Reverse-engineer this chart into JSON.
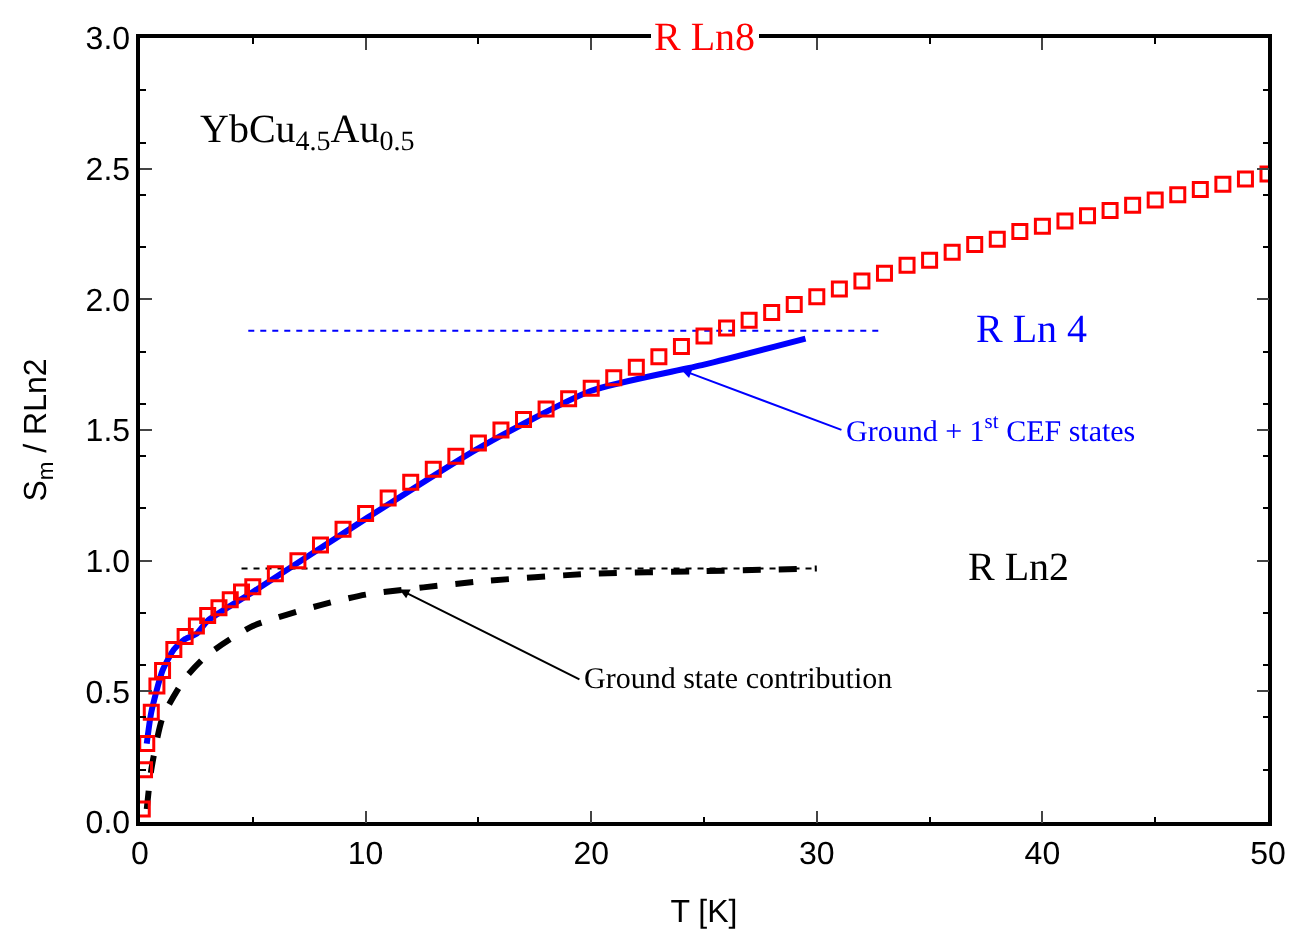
{
  "chart_data": {
    "type": "line",
    "xlabel": "T [K]",
    "ylabel": "S$_{m}$ / RLn2",
    "xlim": [
      0,
      50
    ],
    "xticks": [
      0,
      10,
      20,
      30,
      40,
      50
    ],
    "ylim": [
      0,
      3.0
    ],
    "yticks": [
      {
        "value": 0,
        "label": "0.0"
      },
      0.5,
      {
        "value": 1,
        "label": "1.0"
      },
      1.5,
      {
        "value": 2,
        "label": "2.0"
      },
      2.5,
      {
        "value": 3,
        "label": "3.0"
      }
    ],
    "series": [
      {
        "type": "scatter",
        "marker": "square",
        "color": "#ff0000",
        "x": [
          0.1,
          0.2,
          0.3,
          0.5,
          0.75,
          1,
          1.5,
          2,
          2.5,
          3,
          3.5,
          4,
          4.5,
          5,
          6,
          7,
          8,
          9,
          10,
          11,
          12,
          13,
          14,
          15,
          16,
          17,
          18,
          19,
          20,
          21,
          22,
          23,
          24,
          25,
          26,
          27,
          28,
          29,
          30,
          31,
          32,
          33,
          34,
          35,
          36,
          37,
          38,
          39,
          40,
          41,
          42,
          43,
          44,
          45,
          46,
          47,
          48,
          49,
          50
        ],
        "values": [
          0.05,
          0.2,
          0.3,
          0.42,
          0.52,
          0.58,
          0.66,
          0.71,
          0.75,
          0.79,
          0.82,
          0.85,
          0.88,
          0.9,
          0.95,
          1.0,
          1.06,
          1.12,
          1.18,
          1.24,
          1.3,
          1.35,
          1.4,
          1.45,
          1.5,
          1.54,
          1.58,
          1.62,
          1.66,
          1.7,
          1.74,
          1.78,
          1.82,
          1.86,
          1.89,
          1.92,
          1.95,
          1.98,
          2.01,
          2.04,
          2.07,
          2.1,
          2.13,
          2.15,
          2.18,
          2.21,
          2.23,
          2.26,
          2.28,
          2.3,
          2.32,
          2.34,
          2.36,
          2.38,
          2.4,
          2.42,
          2.44,
          2.46,
          2.48
        ]
      },
      {
        "line_style": "solid",
        "color": "#0000ff",
        "x": [
          0.3,
          0.5,
          1,
          1.5,
          2,
          2.5,
          3,
          5,
          10,
          15,
          20,
          25,
          29.5
        ],
        "values": [
          0.3,
          0.42,
          0.58,
          0.66,
          0.7,
          0.72,
          0.77,
          0.88,
          1.16,
          1.43,
          1.65,
          1.75,
          1.85
        ]
      },
      {
        "line_style": "dashed",
        "color": "#000000",
        "x": [
          0.3,
          0.5,
          1,
          2,
          3,
          5,
          8,
          10,
          15,
          20,
          25,
          30
        ],
        "values": [
          0.05,
          0.2,
          0.4,
          0.55,
          0.64,
          0.75,
          0.83,
          0.87,
          0.92,
          0.95,
          0.96,
          0.97
        ]
      },
      {
        "line_style": "dotted",
        "color": "#0000ff",
        "x": [
          4.8,
          32.8
        ],
        "values": [
          1.88,
          1.88
        ]
      },
      {
        "line_style": "dotted",
        "color": "#000000",
        "x": [
          4.5,
          30
        ],
        "values": [
          0.97,
          0.97
        ]
      }
    ],
    "annotations": [
      "YbCu$_{4.5}$Au$_{0.5}$",
      "R Ln8",
      "R Ln 4",
      "R Ln2",
      {
        "text": "Ground + 1$^{st}$ CEF states",
        "x": 24,
        "y": 1.73
      },
      {
        "text": "Ground state contribution",
        "x": 11.5,
        "y": 0.89
      }
    ]
  }
}
